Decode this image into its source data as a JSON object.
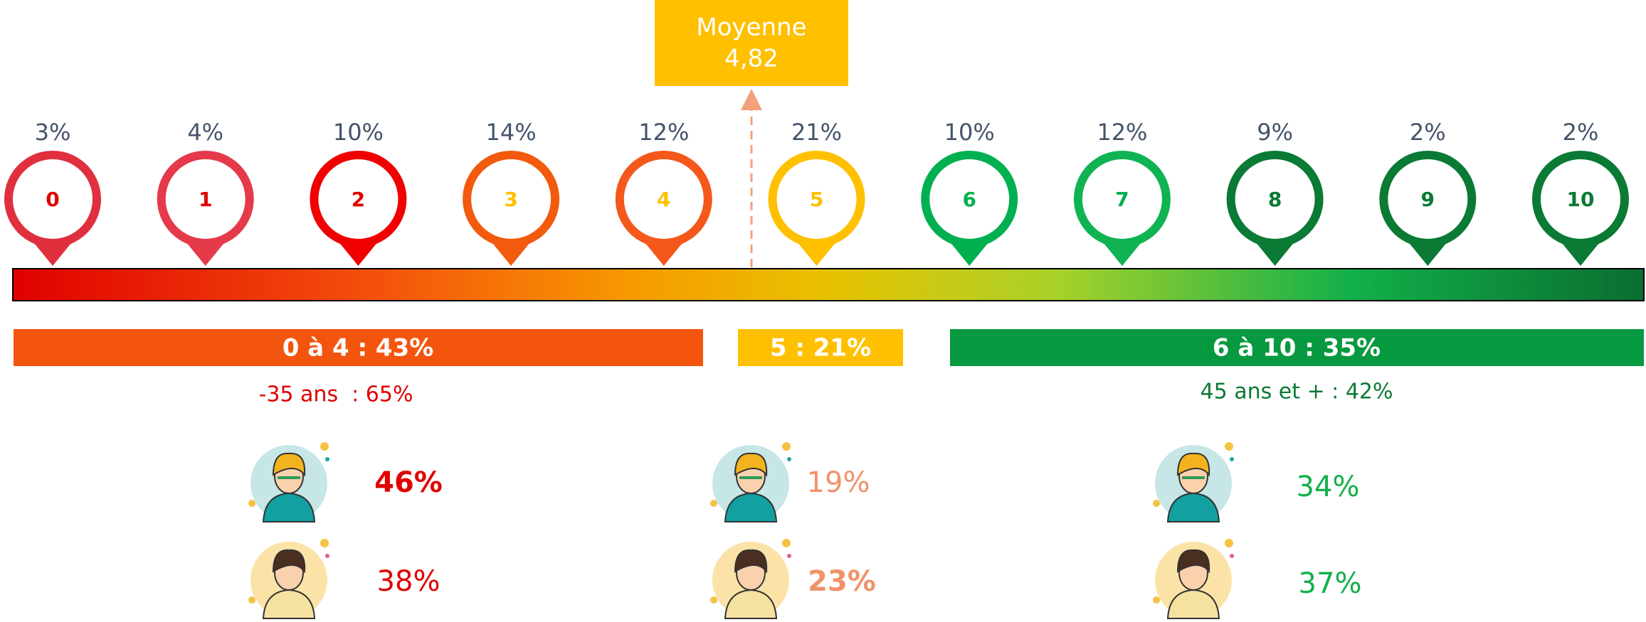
{
  "average": {
    "label": "Moyenne",
    "value": "4,82"
  },
  "scale": [
    {
      "score": "0",
      "share": "3%"
    },
    {
      "score": "1",
      "share": "4%"
    },
    {
      "score": "2",
      "share": "10%"
    },
    {
      "score": "3",
      "share": "14%"
    },
    {
      "score": "4",
      "share": "12%"
    },
    {
      "score": "5",
      "share": "21%"
    },
    {
      "score": "6",
      "share": "10%"
    },
    {
      "score": "7",
      "share": "12%"
    },
    {
      "score": "8",
      "share": "9%"
    },
    {
      "score": "9",
      "share": "2%"
    },
    {
      "score": "10",
      "share": "2%"
    }
  ],
  "groups": [
    {
      "label": "0 à 4 : 43%",
      "detail": "-35 ans  : 65%",
      "women": "46%",
      "men": "38%"
    },
    {
      "label": "5 : 21%",
      "women": "19%",
      "men": "23%"
    },
    {
      "label": "6 à 10 : 35%",
      "detail": "45 ans et + : 42%",
      "women": "34%",
      "men": "37%"
    }
  ]
}
